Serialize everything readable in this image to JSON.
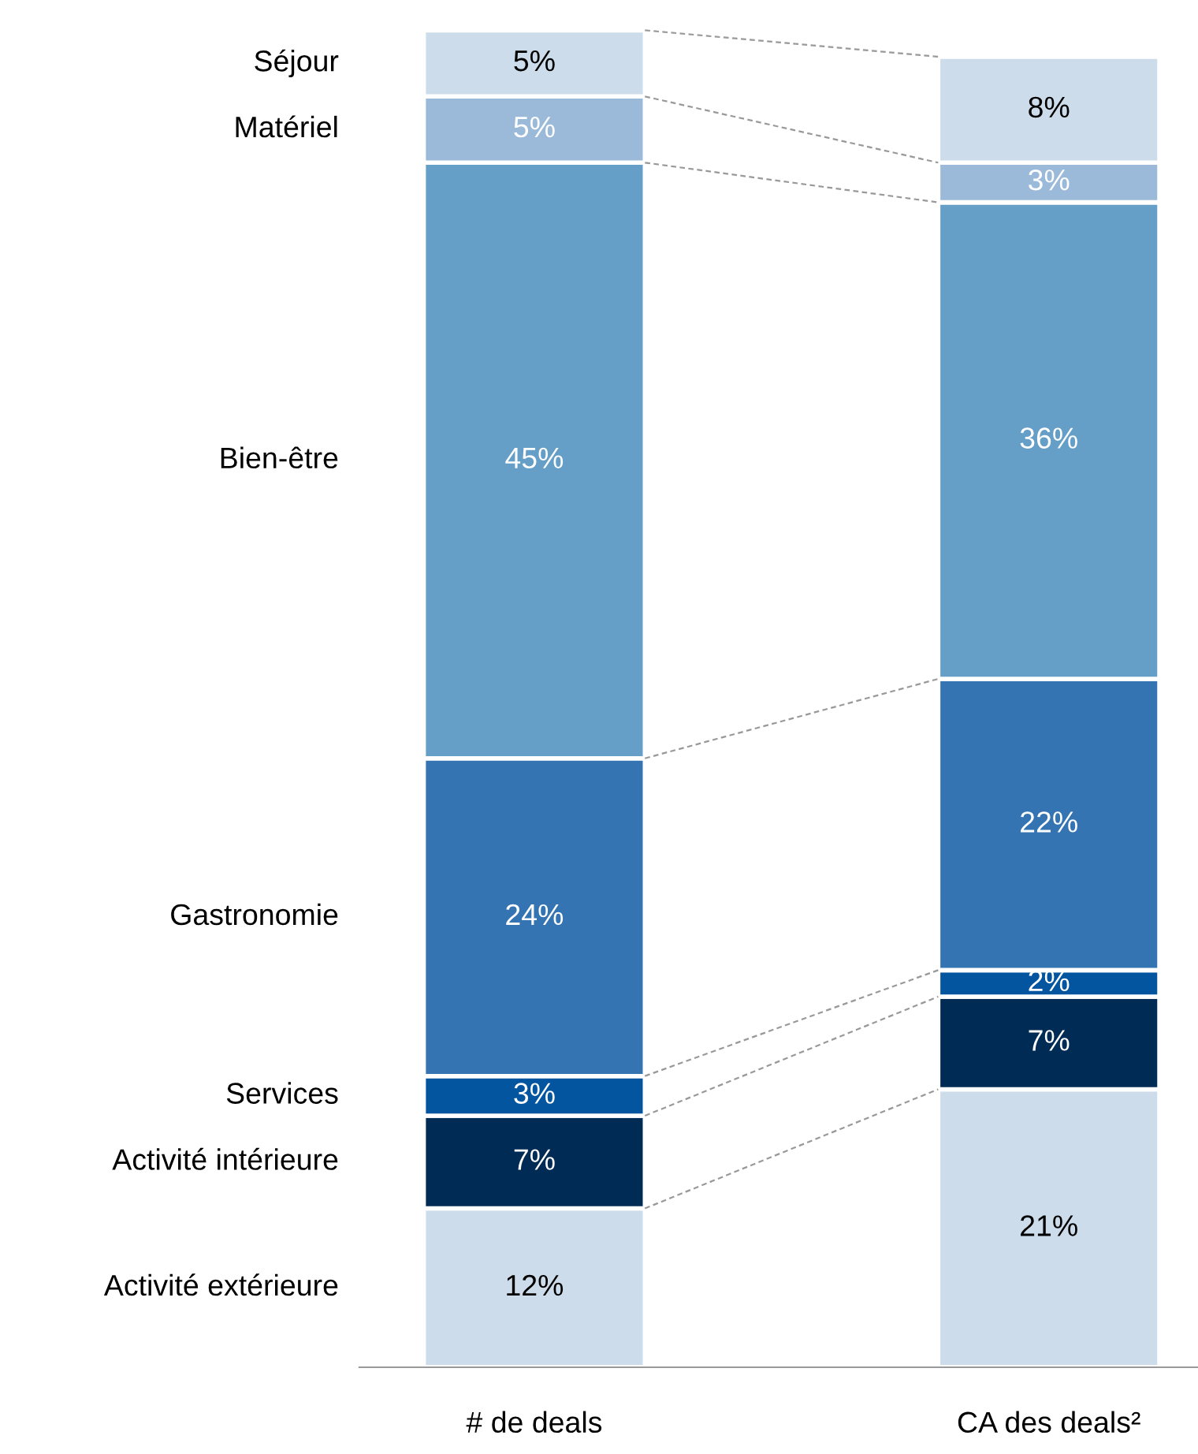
{
  "chart_data": {
    "type": "bar",
    "stacked": true,
    "legend": false,
    "grid": false,
    "categories": [
      "# de deals",
      "CA des deals²"
    ],
    "series": [
      {
        "name": "Activité extérieure",
        "color": "#ccdcea",
        "values": [
          12,
          21
        ],
        "value_labels": [
          "12%",
          "21%"
        ]
      },
      {
        "name": "Activité intérieure",
        "color": "#002b54",
        "values": [
          7,
          7
        ],
        "value_labels": [
          "7%",
          "7%"
        ]
      },
      {
        "name": "Services",
        "color": "#0455a0",
        "values": [
          3,
          2
        ],
        "value_labels": [
          "3%",
          "2%"
        ]
      },
      {
        "name": "Gastronomie",
        "color": "#3574b2",
        "values": [
          24,
          22
        ],
        "value_labels": [
          "24%",
          "22%"
        ]
      },
      {
        "name": "Bien-être",
        "color": "#659ec7",
        "values": [
          45,
          36
        ],
        "value_labels": [
          "45%",
          "36%"
        ]
      },
      {
        "name": "Matériel",
        "color": "#9bbad9",
        "values": [
          5,
          3
        ],
        "value_labels": [
          "5%",
          "3%"
        ]
      },
      {
        "name": "Séjour",
        "color": "#ccdcea",
        "values": [
          5,
          8
        ],
        "value_labels": [
          "5%",
          "8%"
        ]
      }
    ]
  }
}
